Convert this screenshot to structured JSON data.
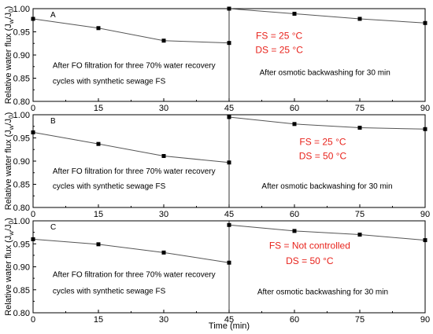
{
  "figure": {
    "ylabel_main": "Relative water flux (J",
    "ylabel_w": "w",
    "ylabel_mid": "/J",
    "ylabel_0": "0",
    "ylabel_end": ")",
    "xlabel": "Time (min)",
    "colors": {
      "line": "#555555",
      "marker": "#000000",
      "annotation_red": "#e8231c",
      "text": "#000000"
    }
  },
  "chart_data": [
    {
      "type": "line",
      "panel": "A",
      "x": [
        0,
        15,
        30,
        45,
        45,
        60,
        75,
        90
      ],
      "values": [
        0.978,
        0.958,
        0.931,
        0.926,
        1.0,
        0.989,
        0.978,
        0.969
      ],
      "break_after_index": 3,
      "xlim": [
        0,
        90
      ],
      "ylim": [
        0.8,
        1.0
      ],
      "xticks": [
        "0",
        "15",
        "30",
        "45",
        "60",
        "75",
        "90"
      ],
      "yticks": [
        "0.80",
        "0.85",
        "0.90",
        "0.95",
        "1.00"
      ],
      "annotation_left_1": "After FO filtration for three 70% water recovery",
      "annotation_left_2": "cycles with synthetic sewage FS",
      "annotation_right": "After osmotic backwashing for 30 min",
      "condition_1": "FS = 25 °C",
      "condition_2": "DS = 25 °C"
    },
    {
      "type": "line",
      "panel": "B",
      "x": [
        0,
        15,
        30,
        45,
        45,
        60,
        75,
        90
      ],
      "values": [
        0.962,
        0.937,
        0.911,
        0.897,
        0.995,
        0.98,
        0.972,
        0.969
      ],
      "break_after_index": 3,
      "xlim": [
        0,
        90
      ],
      "ylim": [
        0.8,
        1.0
      ],
      "xticks": [
        "0",
        "15",
        "30",
        "45",
        "60",
        "75",
        "90"
      ],
      "yticks": [
        "0.80",
        "0.85",
        "0.90",
        "0.95",
        "1.00"
      ],
      "annotation_left_1": "After FO filtration for three 70% water recovery",
      "annotation_left_2": "cycles with synthetic sewage FS",
      "annotation_right": "After osmotic backwashing for 30 min",
      "condition_1": "FS = 25 °C",
      "condition_2": "DS = 50 °C"
    },
    {
      "type": "line",
      "panel": "C",
      "x": [
        0,
        15,
        30,
        45,
        45,
        60,
        75,
        90
      ],
      "values": [
        0.96,
        0.949,
        0.931,
        0.909,
        0.991,
        0.978,
        0.97,
        0.958
      ],
      "break_after_index": 3,
      "xlim": [
        0,
        90
      ],
      "ylim": [
        0.8,
        1.0
      ],
      "xticks": [
        "0",
        "15",
        "30",
        "45",
        "60",
        "75",
        "90"
      ],
      "yticks": [
        "0.80",
        "0.85",
        "0.90",
        "0.95",
        "1.00"
      ],
      "annotation_left_1": "After FO filtration for three 70% water recovery",
      "annotation_left_2": "cycles with synthetic sewage FS",
      "annotation_right": "After osmotic backwashing for 30 min",
      "condition_1": "FS = Not controlled",
      "condition_2": "DS = 50 °C"
    }
  ]
}
